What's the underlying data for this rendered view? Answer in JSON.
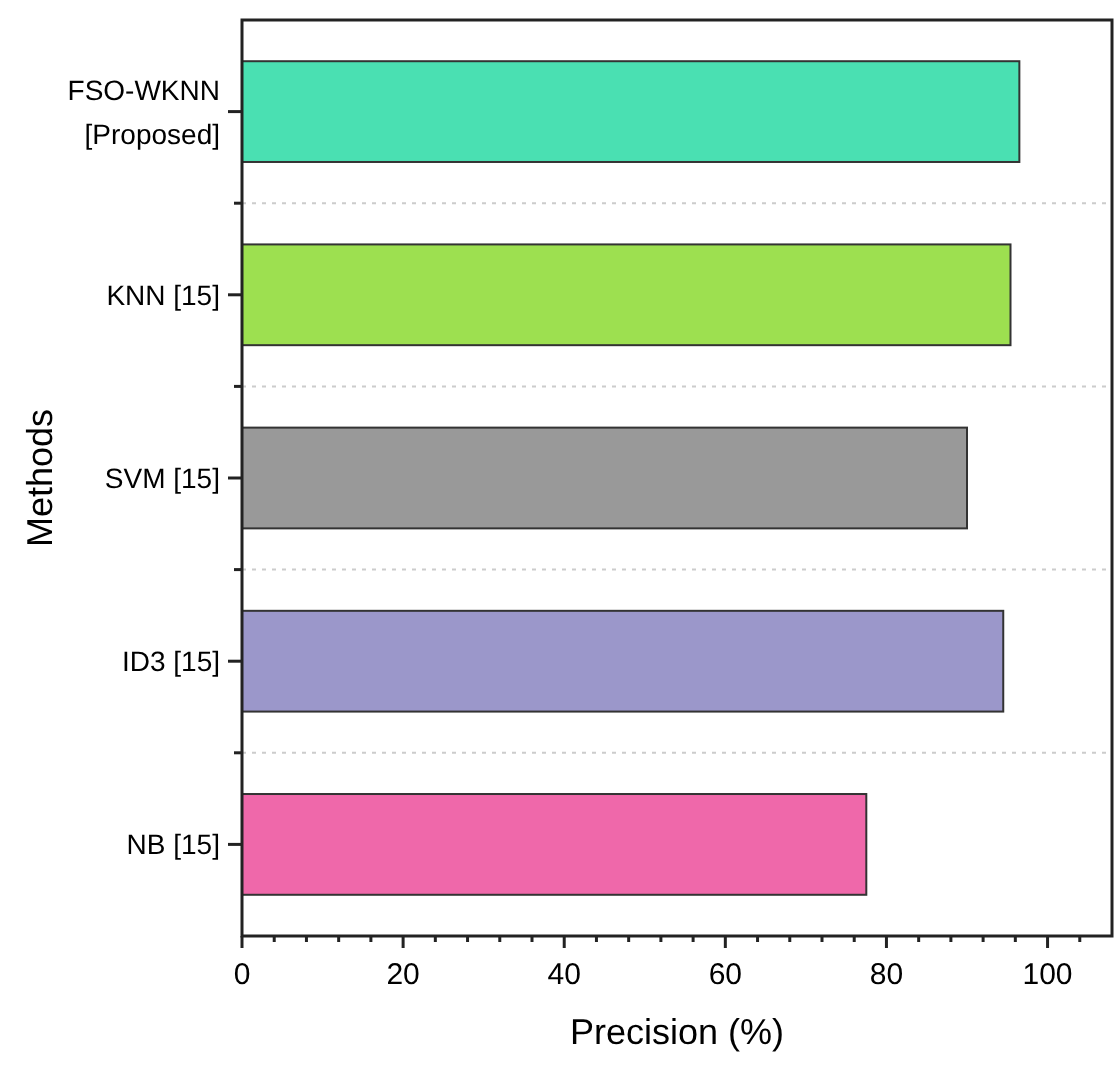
{
  "chart_data": {
    "type": "bar",
    "orientation": "horizontal",
    "xlabel": "Precision (%)",
    "ylabel": "Methods",
    "categories": [
      "FSO-WKNN [Proposed]",
      "KNN [15]",
      "SVM [15]",
      "ID3 [15]",
      "NB [15]"
    ],
    "values": [
      96.5,
      95.4,
      90.0,
      94.5,
      77.5
    ],
    "colors": [
      "#4ae0b2",
      "#9de050",
      "#999999",
      "#9b97ca",
      "#ef68aa"
    ],
    "xlim": [
      0,
      108
    ],
    "xticks": [
      0,
      {
        "value": 4,
        "label": null
      },
      {
        "value": 8,
        "label": null
      },
      {
        "value": 12,
        "label": null
      },
      {
        "value": 16,
        "label": null
      },
      20,
      {
        "value": 24,
        "label": null
      },
      {
        "value": 28,
        "label": null
      },
      {
        "value": 32,
        "label": null
      },
      {
        "value": 36,
        "label": null
      },
      40,
      {
        "value": 44,
        "label": null
      },
      {
        "value": 48,
        "label": null
      },
      {
        "value": 52,
        "label": null
      },
      {
        "value": 56,
        "label": null
      },
      60,
      {
        "value": 64,
        "label": null
      },
      {
        "value": 68,
        "label": null
      },
      {
        "value": 72,
        "label": null
      },
      {
        "value": 76,
        "label": null
      },
      80,
      {
        "value": 84,
        "label": null
      },
      {
        "value": 88,
        "label": null
      },
      {
        "value": 92,
        "label": null
      },
      {
        "value": 96,
        "label": null
      },
      100,
      {
        "value": 104,
        "label": null
      }
    ],
    "grid": "y"
  }
}
